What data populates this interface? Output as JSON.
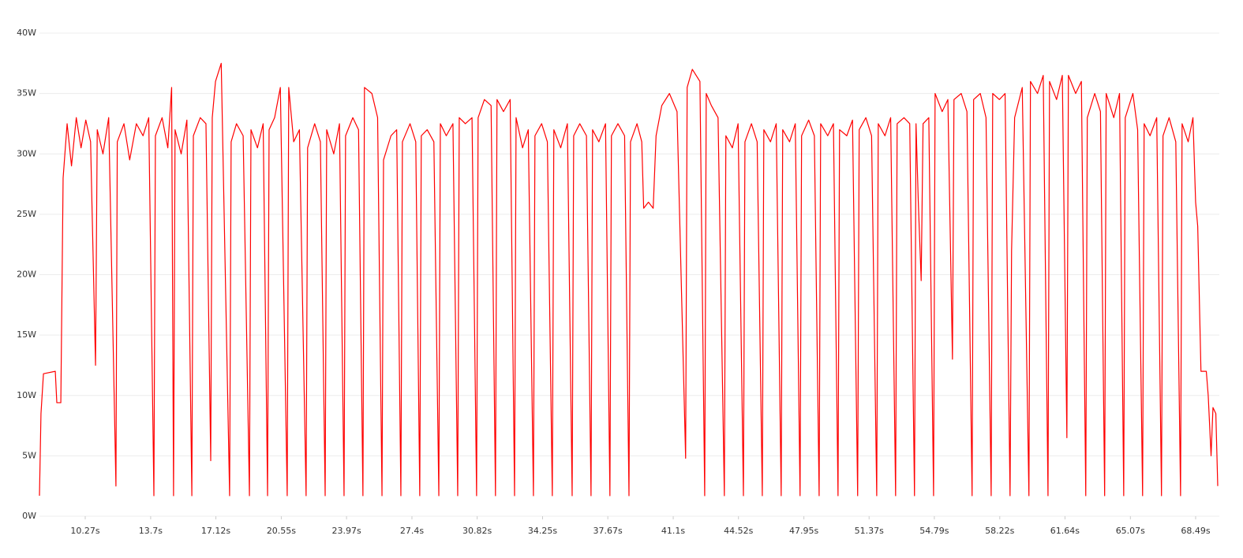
{
  "chart_data": {
    "type": "line",
    "color": "#ff0000",
    "grid": true,
    "xlim": [
      7.87,
      69.65
    ],
    "ylim": [
      0,
      40
    ],
    "yticks": [
      {
        "value": 0,
        "label": "0W"
      },
      {
        "value": 5,
        "label": "5W"
      },
      {
        "value": 10,
        "label": "10W"
      },
      {
        "value": 15,
        "label": "15W"
      },
      {
        "value": 20,
        "label": "20W"
      },
      {
        "value": 25,
        "label": "25W"
      },
      {
        "value": 30,
        "label": "30W"
      },
      {
        "value": 35,
        "label": "35W"
      },
      {
        "value": 40,
        "label": "40W"
      }
    ],
    "xticks": [
      {
        "value": 10.27,
        "label": "10.27s"
      },
      {
        "value": 13.7,
        "label": "13.7s"
      },
      {
        "value": 17.12,
        "label": "17.12s"
      },
      {
        "value": 20.55,
        "label": "20.55s"
      },
      {
        "value": 23.97,
        "label": "23.97s"
      },
      {
        "value": 27.4,
        "label": "27.4s"
      },
      {
        "value": 30.82,
        "label": "30.82s"
      },
      {
        "value": 34.25,
        "label": "34.25s"
      },
      {
        "value": 37.67,
        "label": "37.67s"
      },
      {
        "value": 41.1,
        "label": "41.1s"
      },
      {
        "value": 44.52,
        "label": "44.52s"
      },
      {
        "value": 47.95,
        "label": "47.95s"
      },
      {
        "value": 51.37,
        "label": "51.37s"
      },
      {
        "value": 54.79,
        "label": "54.79s"
      },
      {
        "value": 58.22,
        "label": "58.22s"
      },
      {
        "value": 61.64,
        "label": "61.64s"
      },
      {
        "value": 65.07,
        "label": "65.07s"
      },
      {
        "value": 68.49,
        "label": "68.49s"
      }
    ],
    "x": [
      7.87,
      7.95,
      8.08,
      8.7,
      8.78,
      8.99,
      9.11,
      9.32,
      9.55,
      9.8,
      10.05,
      10.3,
      10.55,
      10.81,
      10.9,
      11.2,
      11.5,
      11.88,
      11.95,
      12.3,
      12.6,
      12.95,
      13.3,
      13.6,
      13.87,
      13.95,
      14.3,
      14.6,
      14.8,
      14.9,
      14.98,
      15.3,
      15.6,
      15.86,
      15.94,
      16.3,
      16.6,
      16.85,
      16.93,
      17.1,
      17.4,
      17.84,
      17.92,
      18.2,
      18.55,
      18.88,
      18.96,
      19.3,
      19.6,
      19.83,
      19.91,
      20.2,
      20.5,
      20.86,
      20.94,
      21.2,
      21.5,
      21.85,
      21.93,
      22.3,
      22.6,
      22.85,
      22.93,
      23.3,
      23.6,
      23.84,
      23.92,
      24.3,
      24.6,
      24.83,
      24.91,
      25.3,
      25.6,
      25.83,
      25.91,
      26.3,
      26.6,
      26.82,
      26.9,
      27.3,
      27.6,
      27.81,
      27.89,
      28.2,
      28.55,
      28.81,
      28.89,
      29.2,
      29.55,
      29.8,
      29.88,
      30.2,
      30.55,
      30.79,
      30.87,
      31.2,
      31.55,
      31.78,
      31.86,
      32.2,
      32.55,
      32.78,
      32.86,
      33.2,
      33.5,
      33.77,
      33.85,
      34.2,
      34.5,
      34.76,
      34.84,
      35.2,
      35.55,
      35.8,
      35.88,
      36.2,
      36.55,
      36.79,
      36.87,
      37.2,
      37.55,
      37.78,
      37.86,
      38.2,
      38.55,
      38.78,
      38.86,
      39.2,
      39.45,
      39.55,
      39.8,
      40.05,
      40.2,
      40.5,
      40.9,
      41.3,
      41.75,
      41.83,
      42.1,
      42.5,
      42.75,
      42.83,
      43.1,
      43.45,
      43.78,
      43.86,
      44.2,
      44.5,
      44.78,
      44.86,
      45.2,
      45.5,
      45.77,
      45.85,
      46.2,
      46.5,
      46.76,
      46.84,
      47.2,
      47.5,
      47.75,
      47.83,
      48.2,
      48.5,
      48.75,
      48.83,
      49.2,
      49.5,
      49.74,
      49.82,
      50.2,
      50.5,
      50.77,
      50.85,
      51.2,
      51.5,
      51.77,
      51.85,
      52.2,
      52.5,
      52.76,
      52.84,
      53.2,
      53.5,
      53.75,
      53.83,
      53.95,
      54.1,
      54.2,
      54.5,
      54.75,
      54.83,
      55.2,
      55.5,
      55.74,
      55.82,
      56.2,
      56.5,
      56.77,
      56.85,
      57.2,
      57.5,
      57.77,
      57.85,
      58.2,
      58.5,
      58.76,
      58.84,
      59.0,
      59.4,
      59.75,
      59.83,
      60.2,
      60.5,
      60.75,
      60.83,
      61.2,
      61.5,
      61.74,
      61.82,
      62.2,
      62.5,
      62.73,
      62.81,
      63.2,
      63.5,
      63.72,
      63.8,
      64.2,
      64.5,
      64.72,
      64.8,
      65.2,
      65.45,
      65.71,
      65.79,
      66.1,
      66.45,
      66.7,
      66.78,
      67.1,
      67.45,
      67.7,
      67.78,
      68.1,
      68.35,
      68.49,
      68.6,
      68.77,
      69.05,
      69.15,
      69.3,
      69.4,
      69.55,
      69.65
    ],
    "values": [
      1.7,
      8.5,
      11.8,
      12,
      9.4,
      9.4,
      28,
      32.5,
      29,
      33,
      30.5,
      32.8,
      31,
      12.5,
      32,
      30,
      33,
      2.5,
      31,
      32.5,
      29.5,
      32.5,
      31.5,
      33,
      1.7,
      31.5,
      33,
      30.5,
      35.5,
      1.7,
      32,
      30,
      32.8,
      1.7,
      31.5,
      33,
      32.5,
      4.6,
      33,
      36,
      37.5,
      1.7,
      31,
      32.5,
      31.5,
      1.7,
      32,
      30.5,
      32.5,
      1.7,
      32,
      33,
      35.5,
      1.7,
      35.5,
      31,
      32,
      1.7,
      30.5,
      32.5,
      31,
      1.7,
      32,
      30,
      32.5,
      1.7,
      31.5,
      33,
      32,
      1.7,
      35.5,
      35,
      33,
      1.7,
      29.5,
      31.5,
      32,
      1.7,
      31,
      32.5,
      31,
      1.7,
      31.5,
      32,
      31,
      1.7,
      32.5,
      31.5,
      32.5,
      1.7,
      33,
      32.5,
      33,
      1.7,
      33,
      34.5,
      34,
      1.7,
      34.5,
      33.5,
      34.5,
      1.7,
      33,
      30.5,
      32,
      1.7,
      31.5,
      32.5,
      31,
      1.7,
      32,
      30.5,
      32.5,
      1.7,
      31.5,
      32.5,
      31.5,
      1.7,
      32,
      31,
      32.5,
      1.7,
      31.5,
      32.5,
      31.5,
      1.7,
      31,
      32.5,
      31,
      25.5,
      26,
      25.5,
      31.5,
      34,
      35,
      33.5,
      4.8,
      35.5,
      37,
      36,
      1.7,
      35,
      34,
      33,
      1.7,
      31.5,
      30.5,
      32.5,
      1.7,
      31,
      32.5,
      31,
      1.7,
      32,
      31,
      32.5,
      1.7,
      32,
      31,
      32.5,
      1.7,
      31.5,
      32.8,
      31.5,
      1.7,
      32.5,
      31.5,
      32.5,
      1.7,
      32,
      31.5,
      32.8,
      1.7,
      32,
      33,
      31.5,
      1.7,
      32.5,
      31.5,
      33,
      1.7,
      32.5,
      33,
      32.5,
      1.7,
      32.5,
      26,
      19.5,
      32.5,
      33,
      1.7,
      35,
      33.5,
      34.5,
      13,
      34.5,
      35,
      33.5,
      1.7,
      34.5,
      35,
      33,
      1.7,
      35,
      34.5,
      35,
      1.7,
      22,
      33,
      35.5,
      1.7,
      36,
      35,
      36.5,
      1.7,
      36,
      34.5,
      36.5,
      6.5,
      36.5,
      35,
      36,
      1.7,
      33,
      35,
      33.5,
      1.7,
      35,
      33,
      35,
      1.7,
      33,
      35,
      32,
      1.7,
      32.5,
      31.5,
      33,
      1.7,
      31.5,
      33,
      31,
      1.7,
      32.5,
      31,
      33,
      26,
      24,
      12,
      12,
      10,
      5,
      9,
      8.5,
      2.5
    ]
  }
}
